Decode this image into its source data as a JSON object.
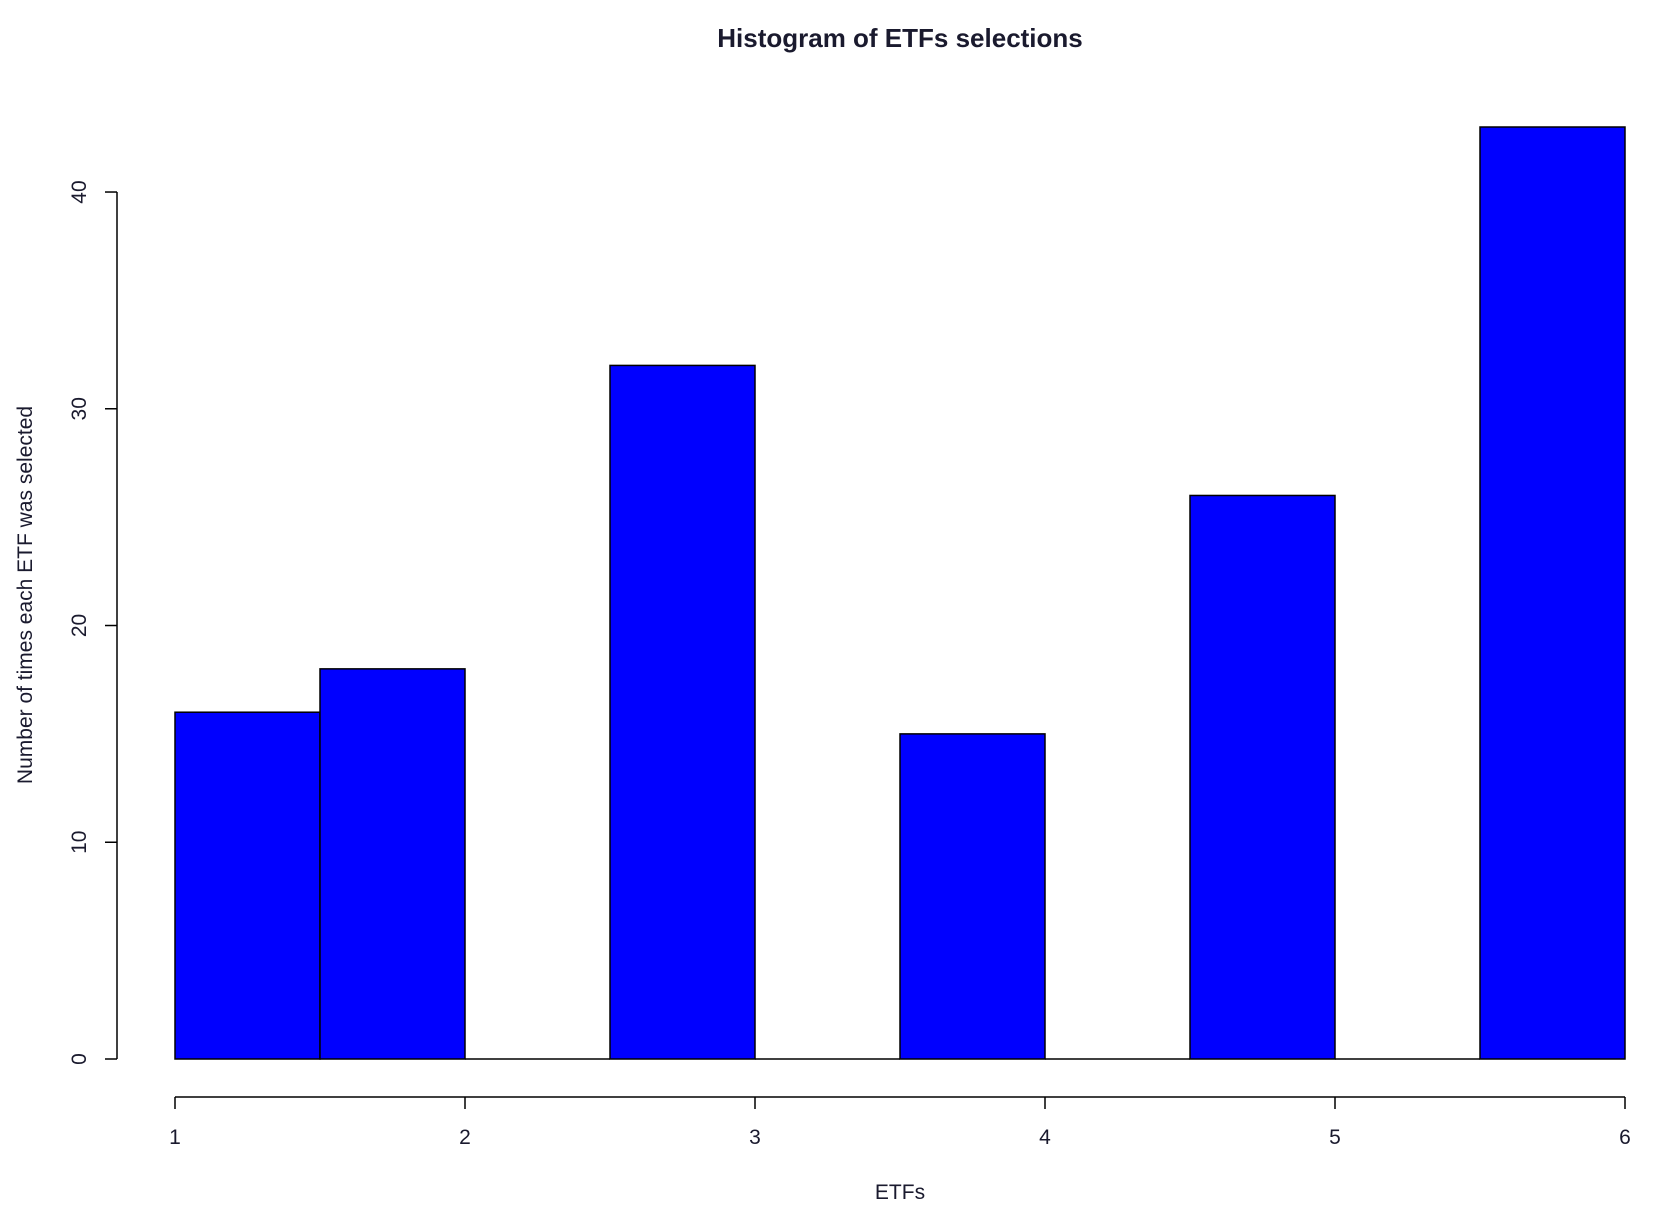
{
  "chart_data": {
    "type": "bar",
    "title": "Histogram of ETFs selections",
    "xlabel": "ETFs",
    "ylabel": "Number of times each ETF was selected",
    "bar_color": "#0000ff",
    "xlim": [
      1,
      6
    ],
    "ylim": [
      0,
      43
    ],
    "x_ticks": [
      1,
      2,
      3,
      4,
      5,
      6
    ],
    "y_ticks": [
      0,
      10,
      20,
      30,
      40
    ],
    "bins": [
      {
        "x0": 1.0,
        "x1": 1.5,
        "value": 16
      },
      {
        "x0": 1.5,
        "x1": 2.0,
        "value": 18
      },
      {
        "x0": 2.0,
        "x1": 2.5,
        "value": 0
      },
      {
        "x0": 2.5,
        "x1": 3.0,
        "value": 32
      },
      {
        "x0": 3.0,
        "x1": 3.5,
        "value": 0
      },
      {
        "x0": 3.5,
        "x1": 4.0,
        "value": 15
      },
      {
        "x0": 4.0,
        "x1": 4.5,
        "value": 0
      },
      {
        "x0": 4.5,
        "x1": 5.0,
        "value": 26
      },
      {
        "x0": 5.0,
        "x1": 5.5,
        "value": 0
      },
      {
        "x0": 5.5,
        "x1": 6.0,
        "value": 43
      }
    ],
    "grid": false,
    "legend": "none"
  }
}
